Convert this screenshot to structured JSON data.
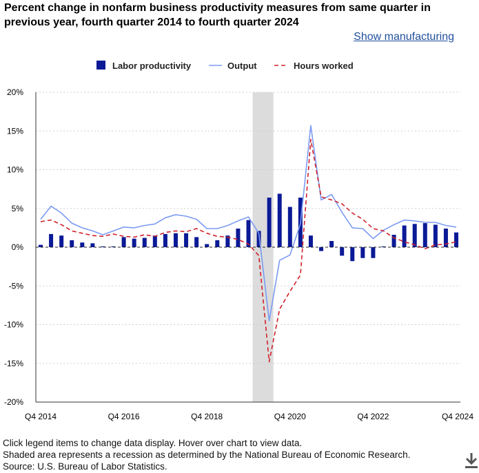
{
  "header": {
    "title": "Percent change in nonfarm business productivity measures from same quarter in previous year, fourth quarter 2014 to fourth quarter 2024",
    "show_link": "Show manufacturing"
  },
  "notes": {
    "line1": "Click legend items to change data display. Hover over chart to view data.",
    "line2": "Shaded area represents a recession as determined by the National Bureau of Economic Research.",
    "line3": "Source: U.S. Bureau of Labor Statistics."
  },
  "colors": {
    "bar": "#0b1a96",
    "output": "#7b9bf2",
    "hours": "#d0202a",
    "recession": "#dcdcdc",
    "grid": "#cfcfcf"
  },
  "icons": {
    "download": "download-icon"
  },
  "chart_data": {
    "type": "bar",
    "title": "Percent change in nonfarm business productivity measures from same quarter in previous year, fourth quarter 2014 to fourth quarter 2024",
    "ylim": [
      -20,
      20
    ],
    "y_ticks": [
      20,
      15,
      10,
      5,
      0,
      -5,
      -10,
      -15,
      -20
    ],
    "y_tick_labels": [
      "20%",
      "15%",
      "10%",
      "5%",
      "0%",
      "-5%",
      "-10%",
      "-15%",
      "-20%"
    ],
    "x_tick_labels": [
      {
        "index": 0,
        "label": "Q4 2014"
      },
      {
        "index": 8,
        "label": "Q4 2016"
      },
      {
        "index": 16,
        "label": "Q4 2018"
      },
      {
        "index": 24,
        "label": "Q4 2020"
      },
      {
        "index": 32,
        "label": "Q4 2022"
      },
      {
        "index": 40,
        "label": "Q4 2024"
      }
    ],
    "recession": {
      "start_index": 20.4,
      "end_index": 22.4
    },
    "legend": [
      "Labor productivity",
      "Output",
      "Hours worked"
    ],
    "categories": [
      "Q4 2014",
      "Q1 2015",
      "Q2 2015",
      "Q3 2015",
      "Q4 2015",
      "Q1 2016",
      "Q2 2016",
      "Q3 2016",
      "Q4 2016",
      "Q1 2017",
      "Q2 2017",
      "Q3 2017",
      "Q4 2017",
      "Q1 2018",
      "Q2 2018",
      "Q3 2018",
      "Q4 2018",
      "Q1 2019",
      "Q2 2019",
      "Q3 2019",
      "Q4 2019",
      "Q1 2020",
      "Q2 2020",
      "Q3 2020",
      "Q4 2020",
      "Q1 2021",
      "Q2 2021",
      "Q3 2021",
      "Q4 2021",
      "Q1 2022",
      "Q2 2022",
      "Q3 2022",
      "Q4 2022",
      "Q1 2023",
      "Q2 2023",
      "Q3 2023",
      "Q4 2023",
      "Q1 2024",
      "Q2 2024",
      "Q3 2024",
      "Q4 2024"
    ],
    "series": [
      {
        "name": "Labor productivity",
        "type": "bar",
        "values": [
          0.3,
          1.7,
          1.5,
          0.9,
          0.6,
          0.5,
          0.1,
          0.1,
          1.3,
          1.1,
          1.2,
          1.5,
          1.7,
          1.8,
          1.8,
          1.3,
          0.4,
          0.9,
          1.5,
          2.4,
          3.5,
          2.1,
          6.4,
          6.9,
          5.2,
          6.4,
          1.5,
          -0.5,
          0.8,
          -1.1,
          -1.8,
          -1.4,
          -1.4,
          0.1,
          1.6,
          2.8,
          3.0,
          3.1,
          2.9,
          2.4,
          1.9
        ]
      },
      {
        "name": "Output",
        "type": "line",
        "values": [
          3.6,
          5.3,
          4.4,
          3.1,
          2.5,
          2.1,
          1.6,
          2.1,
          2.6,
          2.5,
          2.8,
          3.0,
          3.8,
          4.2,
          4.0,
          3.6,
          2.4,
          2.4,
          2.8,
          3.4,
          3.9,
          1.8,
          -9.5,
          -1.7,
          -1.0,
          3.0,
          15.7,
          6.1,
          6.8,
          4.5,
          2.5,
          2.4,
          1.1,
          2.2,
          2.9,
          3.5,
          3.4,
          3.2,
          3.2,
          2.8,
          2.6
        ]
      },
      {
        "name": "Hours worked",
        "type": "line",
        "values": [
          3.3,
          3.5,
          2.9,
          2.1,
          1.8,
          1.5,
          1.4,
          1.7,
          1.4,
          1.3,
          1.6,
          1.4,
          1.9,
          2.1,
          2.0,
          2.4,
          1.8,
          1.4,
          1.3,
          1.0,
          0.4,
          -1.1,
          -14.8,
          -8.0,
          -5.7,
          -3.6,
          13.9,
          6.5,
          6.1,
          5.6,
          4.4,
          3.6,
          2.4,
          2.1,
          1.2,
          0.7,
          0.3,
          -0.2,
          0.3,
          0.4,
          0.7
        ]
      }
    ]
  }
}
